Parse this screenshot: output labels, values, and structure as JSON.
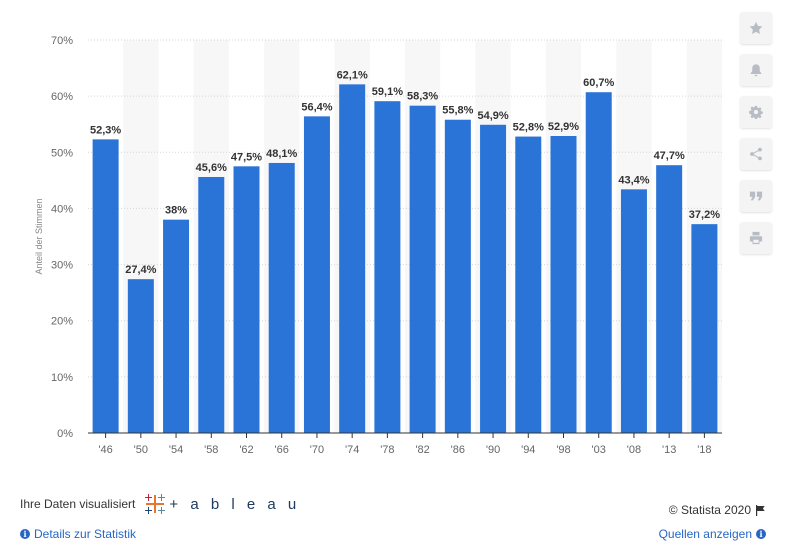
{
  "chart_data": {
    "type": "bar",
    "categories": [
      "'46",
      "'50",
      "'54",
      "'58",
      "'62",
      "'66",
      "'70",
      "'74",
      "'78",
      "'82",
      "'86",
      "'90",
      "'94",
      "'98",
      "'03",
      "'08",
      "'13",
      "'18"
    ],
    "values": [
      52.3,
      27.4,
      38,
      45.6,
      47.5,
      48.1,
      56.4,
      62.1,
      59.1,
      58.3,
      55.8,
      54.9,
      52.8,
      52.9,
      60.7,
      43.4,
      47.7,
      37.2
    ],
    "data_labels": [
      "52,3%",
      "27,4%",
      "38%",
      "45,6%",
      "47,5%",
      "48,1%",
      "56,4%",
      "62,1%",
      "59,1%",
      "58,3%",
      "55,8%",
      "54,9%",
      "52,8%",
      "52,9%",
      "60,7%",
      "43,4%",
      "47,7%",
      "37,2%"
    ],
    "yticks": [
      0,
      10,
      20,
      30,
      40,
      50,
      60,
      70
    ],
    "ytick_labels": [
      "0%",
      "10%",
      "20%",
      "30%",
      "40%",
      "50%",
      "60%",
      "70%"
    ],
    "ylim": [
      0,
      70
    ],
    "ylabel": "Anteil der Stimmen",
    "xlabel": "",
    "title": "",
    "bar_color": "#2a74d8",
    "grid": true
  },
  "toolbar": {
    "items": [
      {
        "name": "star-icon"
      },
      {
        "name": "bell-icon"
      },
      {
        "name": "gear-icon"
      },
      {
        "name": "share-icon"
      },
      {
        "name": "quote-icon"
      },
      {
        "name": "print-icon"
      }
    ]
  },
  "footer": {
    "tableau_text": "Ihre Daten visualisiert",
    "tableau_word": "+ a b l e a u",
    "copyright": "© Statista 2020",
    "details_link": "Details zur Statistik",
    "sources_link": "Quellen anzeigen",
    "info_glyph": "i",
    "link_color": "#2766c6"
  }
}
